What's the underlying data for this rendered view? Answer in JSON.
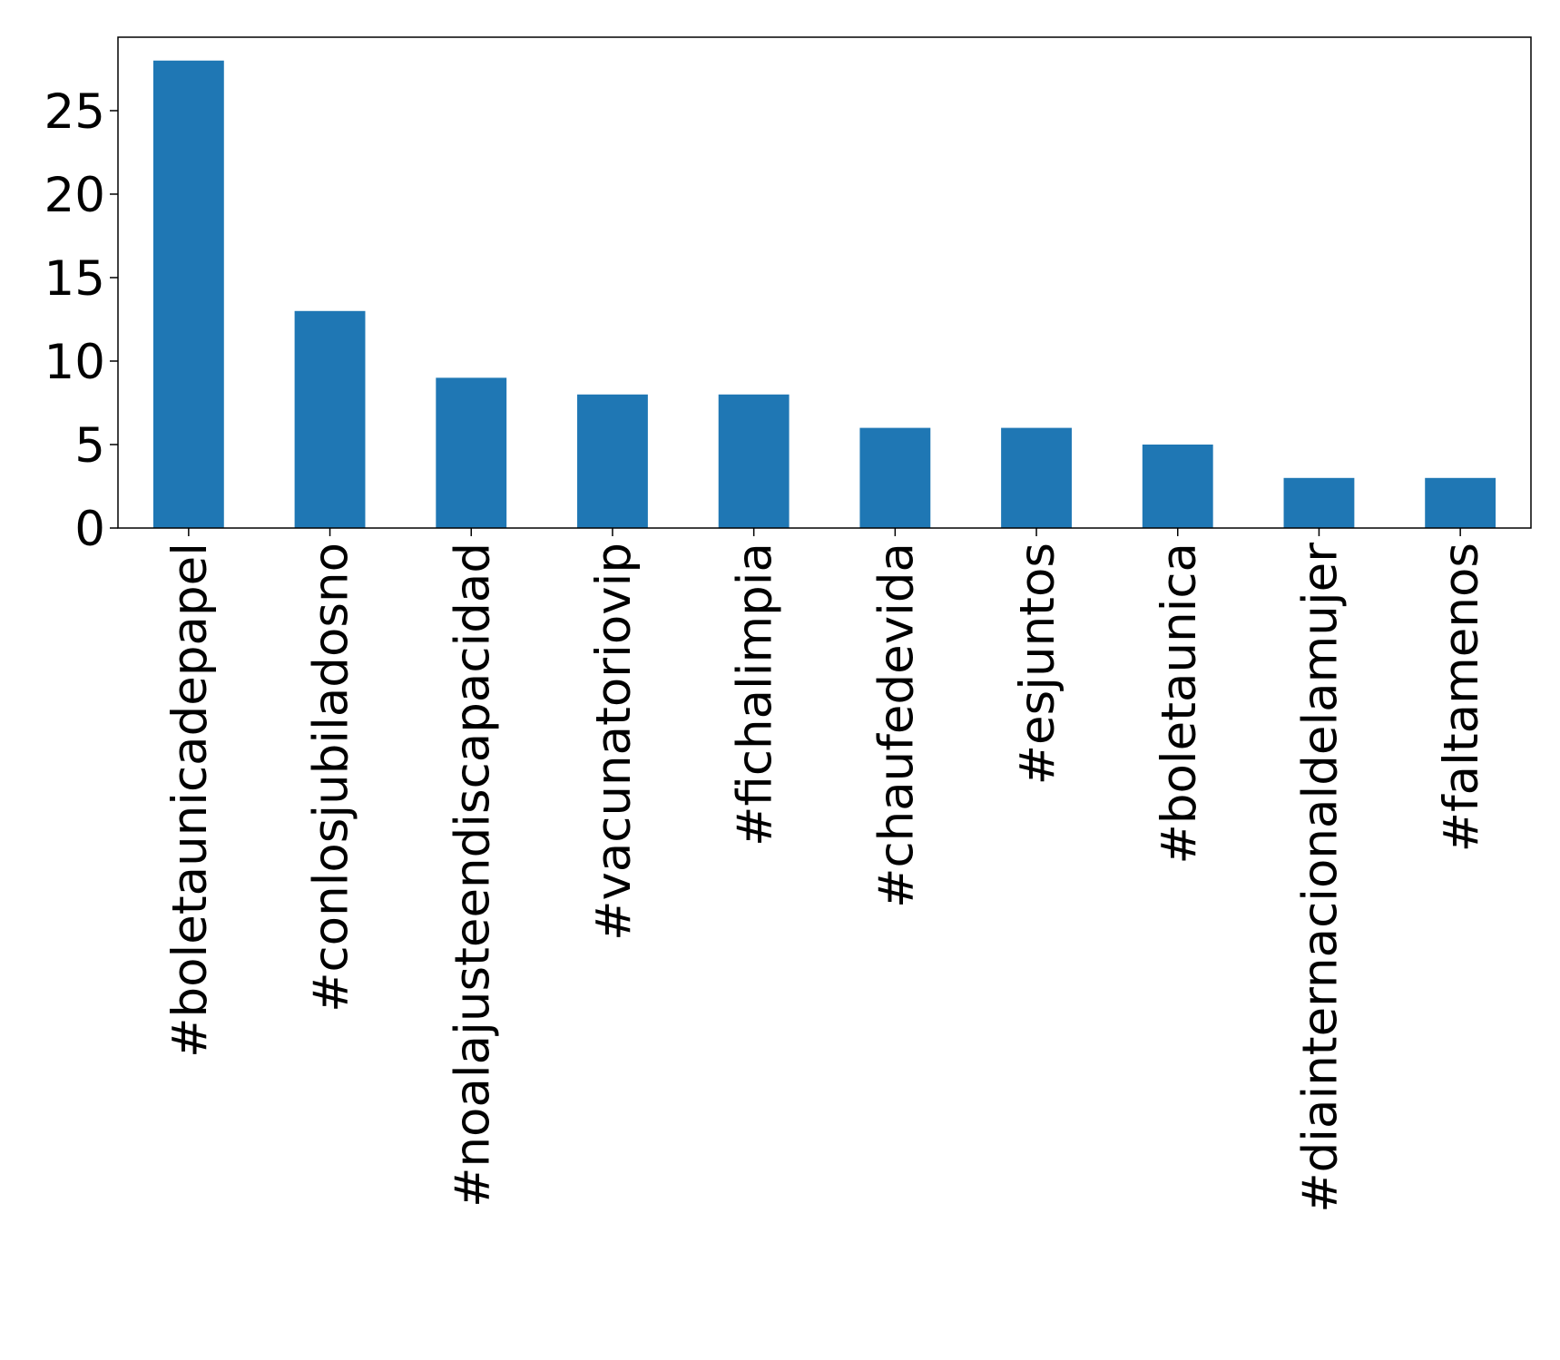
{
  "chart_data": {
    "type": "bar",
    "categories": [
      "#boletaunicadepapel",
      "#conlosjubiladosno",
      "#noalajusteendiscapacidad",
      "#vacunatoriovip",
      "#fichalimpia",
      "#chaufedevida",
      "#esjuntos",
      "#boletaunica",
      "#diainternacionaldelamujer",
      "#faltamenos"
    ],
    "values": [
      28,
      13,
      9,
      8,
      8,
      6,
      6,
      5,
      3,
      3
    ],
    "color": "#1f77b4",
    "ylim": [
      0,
      29.4
    ],
    "yticks": [
      0,
      5,
      10,
      15,
      20,
      25
    ],
    "grid": false
  }
}
